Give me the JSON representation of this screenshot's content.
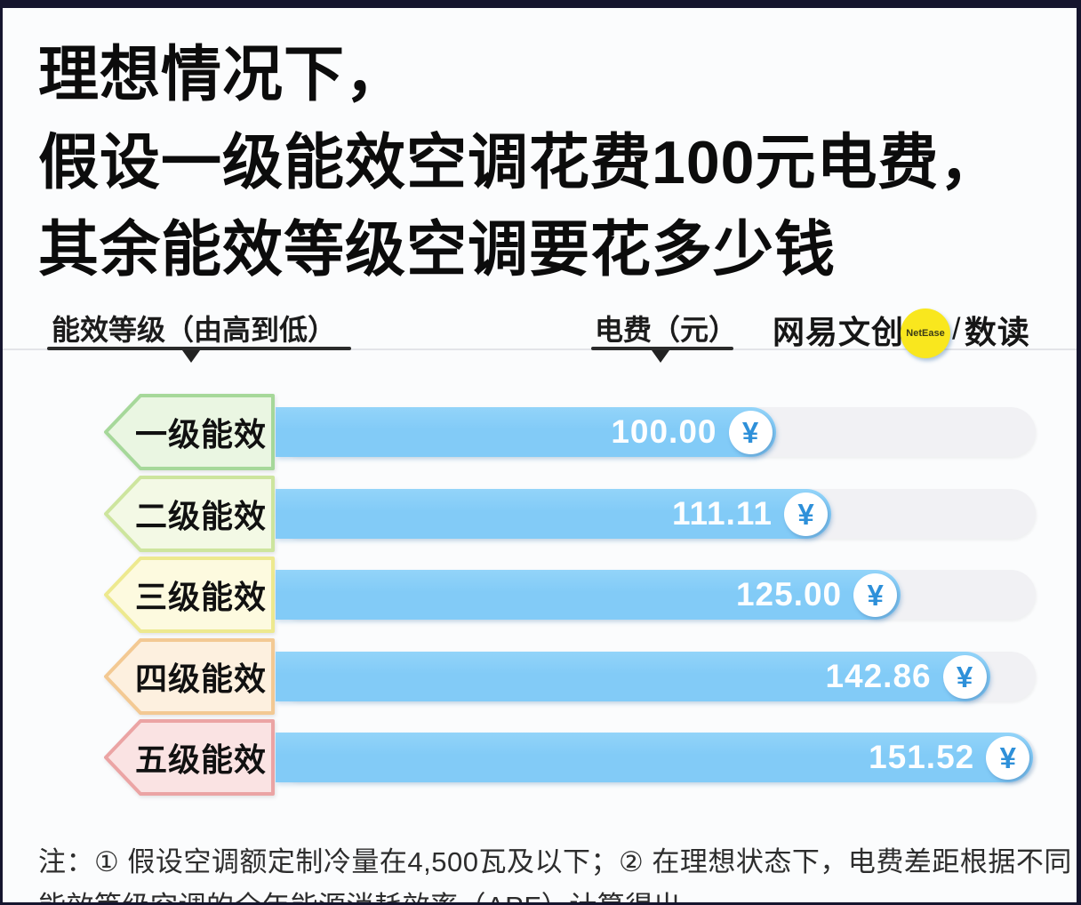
{
  "page": {
    "title_lines": [
      "理想情况下，",
      "假设一级能效空调花费100元电费，",
      "其余能效等级空调要花多少钱"
    ]
  },
  "header": {
    "category_axis_label": "能效等级（由高到低）",
    "value_axis_label": "电费（元）",
    "logo": {
      "brand": "网易文创",
      "badge_text": "NetEase",
      "separator": "/",
      "sub_brand": "数读",
      "badge_color": "#f9e71e"
    }
  },
  "chart_data": {
    "type": "bar",
    "orientation": "horizontal",
    "title": "理想情况下，假设一级能效空调花费100元电费，其余能效等级空调要花多少钱",
    "category_axis_label": "能效等级（由高到低）",
    "value_axis_label": "电费（元）",
    "unit": "¥",
    "categories": [
      "一级能效",
      "二级能效",
      "三级能效",
      "四级能效",
      "五级能效"
    ],
    "values": [
      100.0,
      111.11,
      125.0,
      142.86,
      151.52
    ],
    "value_labels": [
      "100.00",
      "111.11",
      "125.00",
      "142.86",
      "151.52"
    ],
    "xlim": [
      0,
      152
    ],
    "grid": false,
    "legend": "none",
    "bar_color_top": "#93d4f9",
    "bar_color": "#82cbf7",
    "track_color": "#f1f1f4",
    "badge_symbol_color": "#2e90d9",
    "label_styles": [
      {
        "fill": "#eaf6e2",
        "stroke": "#a6d89a"
      },
      {
        "fill": "#f3f9e5",
        "stroke": "#cde59e"
      },
      {
        "fill": "#fdfadf",
        "stroke": "#ede98f"
      },
      {
        "fill": "#fdf0df",
        "stroke": "#f3c993"
      },
      {
        "fill": "#fae3e3",
        "stroke": "#eba4a4"
      }
    ]
  },
  "footnote": {
    "line1": "注：① 假设空调额定制冷量在4,500瓦及以下；② 在理想状态下，电费差距根据不同",
    "line2": "能效等级空调的全年能源消耗效率（APF）计算得出。"
  }
}
